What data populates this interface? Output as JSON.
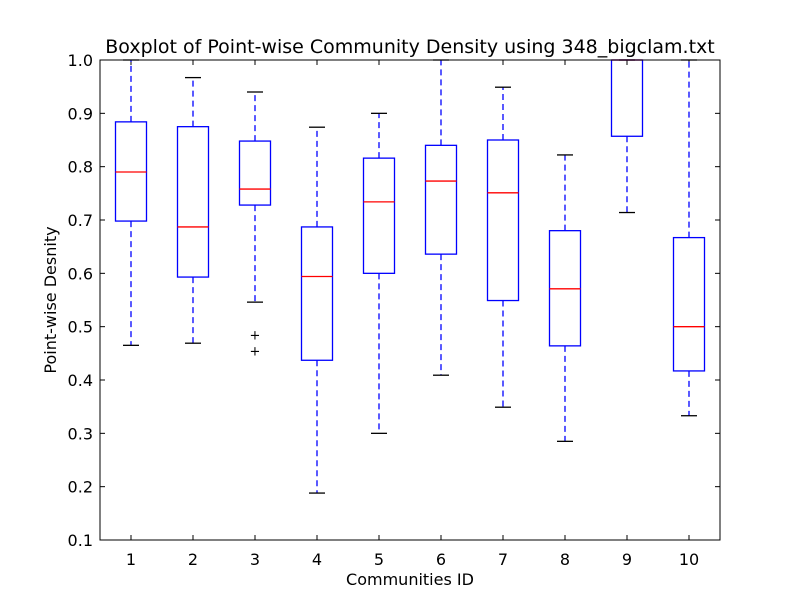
{
  "chart_data": {
    "type": "boxplot",
    "title": "Boxplot of Point-wise Community Density using 348_bigclam.txt",
    "xlabel": "Communities ID",
    "ylabel": "Point-wise Desnity",
    "ylim": [
      0.1,
      1.0
    ],
    "yticks": [
      "0.1",
      "0.2",
      "0.3",
      "0.4",
      "0.5",
      "0.6",
      "0.7",
      "0.8",
      "0.9",
      "1.0"
    ],
    "categories": [
      "1",
      "2",
      "3",
      "4",
      "5",
      "6",
      "7",
      "8",
      "9",
      "10"
    ],
    "boxes": [
      {
        "id": "1",
        "whisker_low": 0.465,
        "q1": 0.698,
        "median": 0.79,
        "q3": 0.884,
        "whisker_high": 1.0,
        "outliers": []
      },
      {
        "id": "2",
        "whisker_low": 0.469,
        "q1": 0.593,
        "median": 0.687,
        "q3": 0.875,
        "whisker_high": 0.967,
        "outliers": []
      },
      {
        "id": "3",
        "whisker_low": 0.546,
        "q1": 0.728,
        "median": 0.758,
        "q3": 0.848,
        "whisker_high": 0.94,
        "outliers": [
          0.485,
          0.455
        ]
      },
      {
        "id": "4",
        "whisker_low": 0.188,
        "q1": 0.437,
        "median": 0.594,
        "q3": 0.687,
        "whisker_high": 0.874,
        "outliers": []
      },
      {
        "id": "5",
        "whisker_low": 0.3,
        "q1": 0.6,
        "median": 0.734,
        "q3": 0.816,
        "whisker_high": 0.9,
        "outliers": []
      },
      {
        "id": "6",
        "whisker_low": 0.409,
        "q1": 0.636,
        "median": 0.773,
        "q3": 0.84,
        "whisker_high": 1.0,
        "outliers": []
      },
      {
        "id": "7",
        "whisker_low": 0.349,
        "q1": 0.549,
        "median": 0.751,
        "q3": 0.85,
        "whisker_high": 0.949,
        "outliers": []
      },
      {
        "id": "8",
        "whisker_low": 0.285,
        "q1": 0.464,
        "median": 0.571,
        "q3": 0.68,
        "whisker_high": 0.822,
        "outliers": []
      },
      {
        "id": "9",
        "whisker_low": 0.714,
        "q1": 0.857,
        "median": 1.0,
        "q3": 1.0,
        "whisker_high": 1.0,
        "outliers": []
      },
      {
        "id": "10",
        "whisker_low": 0.333,
        "q1": 0.417,
        "median": 0.5,
        "q3": 0.667,
        "whisker_high": 1.0,
        "outliers": []
      }
    ],
    "colors": {
      "box": "#0000ff",
      "whisker": "#0000ff",
      "cap": "#000000",
      "median": "#ff0000",
      "outlier": "#000000",
      "axes": "#000000",
      "background": "#ffffff"
    },
    "grid": false
  }
}
